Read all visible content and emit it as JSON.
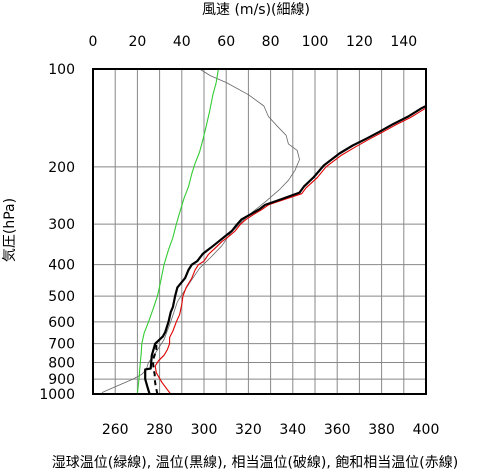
{
  "chart_data": {
    "type": "line",
    "title": "",
    "xlabel": "湿球温位(緑線), 温位(黒線), 相当温位(破線), 飽和相当温位(赤線)",
    "top_xlabel": "風速 (m/s)(細線)",
    "ylabel": "気圧(hPa)",
    "xlim": [
      250,
      400
    ],
    "top_xlim": [
      0,
      150
    ],
    "ylim": [
      1000,
      100
    ],
    "yscale": "log",
    "x_ticks": [
      "260",
      "280",
      "300",
      "320",
      "340",
      "360",
      "380",
      "400"
    ],
    "top_x_ticks": [
      "0",
      "20",
      "40",
      "60",
      "80",
      "100",
      "120",
      "140"
    ],
    "y_ticks": [
      "100",
      "200",
      "300",
      "400",
      "500",
      "600",
      "700",
      "800",
      "900",
      "1000"
    ],
    "grid": true,
    "colors": {
      "wet_bulb": "#33cc33",
      "theta": "#000000",
      "theta_e": "#000000",
      "theta_es": "#e00000",
      "wind": "#666666"
    },
    "series": [
      {
        "key": "wet_bulb",
        "axis": "bottom",
        "points": [
          [
            270,
            1000
          ],
          [
            270.3,
            950
          ],
          [
            270.7,
            900
          ],
          [
            271,
            850
          ],
          [
            271.3,
            800
          ],
          [
            271.7,
            750
          ],
          [
            272,
            700
          ],
          [
            273,
            650
          ],
          [
            275,
            600
          ],
          [
            277,
            550
          ],
          [
            279,
            500
          ],
          [
            280.5,
            450
          ],
          [
            282,
            400
          ],
          [
            284,
            360
          ],
          [
            286,
            330
          ],
          [
            287.5,
            300
          ],
          [
            289.5,
            270
          ],
          [
            291,
            250
          ],
          [
            293,
            230
          ],
          [
            294.5,
            210
          ],
          [
            296,
            195
          ],
          [
            298,
            180
          ],
          [
            299.5,
            165
          ],
          [
            301,
            150
          ],
          [
            302.5,
            135
          ],
          [
            304,
            120
          ],
          [
            305.5,
            110
          ],
          [
            306.5,
            100
          ]
        ]
      },
      {
        "key": "theta",
        "axis": "bottom",
        "style": "solid",
        "points": [
          [
            275.5,
            1000
          ],
          [
            274.5,
            950
          ],
          [
            273.5,
            900
          ],
          [
            273.5,
            840
          ],
          [
            276,
            835
          ],
          [
            276.5,
            760
          ],
          [
            278,
            700
          ],
          [
            281.5,
            665
          ],
          [
            282.5,
            645
          ],
          [
            284,
            600
          ],
          [
            285,
            560
          ],
          [
            286,
            540
          ],
          [
            287,
            500
          ],
          [
            288,
            470
          ],
          [
            291.5,
            440
          ],
          [
            293,
            415
          ],
          [
            294.5,
            400
          ],
          [
            297,
            390
          ],
          [
            299.5,
            370
          ],
          [
            303,
            355
          ],
          [
            306.5,
            340
          ],
          [
            310,
            325
          ],
          [
            312.5,
            315
          ],
          [
            315,
            300
          ],
          [
            317,
            290
          ],
          [
            321,
            280
          ],
          [
            325,
            270
          ],
          [
            327.5,
            262
          ],
          [
            333,
            254
          ],
          [
            343,
            240
          ],
          [
            345,
            230
          ],
          [
            349.5,
            215
          ],
          [
            354,
            198
          ],
          [
            361,
            182
          ],
          [
            367,
            172
          ],
          [
            373,
            164
          ],
          [
            379,
            156
          ],
          [
            385,
            148
          ],
          [
            392,
            140
          ],
          [
            398,
            132
          ],
          [
            400,
            130
          ]
        ]
      },
      {
        "key": "theta_e",
        "axis": "bottom",
        "style": "dashed",
        "points": [
          [
            279,
            1000
          ],
          [
            278.3,
            950
          ],
          [
            277.8,
            900
          ],
          [
            277.8,
            870
          ],
          [
            277.3,
            840
          ],
          [
            277,
            790
          ],
          [
            278.5,
            730
          ],
          [
            278.5,
            700
          ]
        ]
      },
      {
        "key": "theta_es",
        "axis": "bottom",
        "points": [
          [
            285,
            1000
          ],
          [
            283.5,
            970
          ],
          [
            281,
            920
          ],
          [
            278.5,
            860
          ],
          [
            278,
            820
          ],
          [
            279.5,
            790
          ],
          [
            282,
            760
          ],
          [
            283.5,
            730
          ],
          [
            284.5,
            700
          ],
          [
            284.5,
            670
          ],
          [
            286,
            640
          ],
          [
            287.5,
            600
          ],
          [
            289,
            570
          ],
          [
            290,
            530
          ],
          [
            290.5,
            500
          ],
          [
            292,
            470
          ],
          [
            294.5,
            440
          ],
          [
            296,
            415
          ],
          [
            297.5,
            400
          ],
          [
            300,
            390
          ],
          [
            302,
            372
          ],
          [
            305,
            356
          ],
          [
            308,
            340
          ],
          [
            311.5,
            326
          ],
          [
            314,
            315
          ],
          [
            316.5,
            300
          ],
          [
            319,
            290
          ],
          [
            322.5,
            280
          ],
          [
            326,
            271
          ],
          [
            329,
            262
          ],
          [
            334,
            255
          ],
          [
            344,
            242
          ],
          [
            346,
            232
          ],
          [
            351,
            216
          ],
          [
            355,
            200
          ],
          [
            362,
            184
          ],
          [
            368,
            174
          ],
          [
            374,
            165
          ],
          [
            380,
            157
          ],
          [
            386,
            149
          ],
          [
            393,
            141
          ],
          [
            399,
            133
          ],
          [
            400,
            132
          ]
        ]
      },
      {
        "key": "wind",
        "axis": "top",
        "points": [
          [
            4,
            990
          ],
          [
            10,
            950
          ],
          [
            18,
            900
          ],
          [
            22,
            870
          ],
          [
            24,
            840
          ],
          [
            25,
            800
          ],
          [
            28,
            750
          ],
          [
            32,
            680
          ],
          [
            35,
            600
          ],
          [
            38,
            520
          ],
          [
            44,
            450
          ],
          [
            48,
            410
          ],
          [
            53,
            380
          ],
          [
            58,
            350
          ],
          [
            62,
            320
          ],
          [
            67,
            295
          ],
          [
            72,
            275
          ],
          [
            78,
            255
          ],
          [
            84,
            235
          ],
          [
            88,
            220
          ],
          [
            91,
            205
          ],
          [
            93,
            190
          ],
          [
            92,
            178
          ],
          [
            88,
            170
          ],
          [
            87,
            160
          ],
          [
            83,
            150
          ],
          [
            79,
            140
          ],
          [
            77,
            130
          ],
          [
            70,
            120
          ],
          [
            60,
            110
          ],
          [
            53,
            105
          ],
          [
            48,
            100
          ]
        ]
      }
    ]
  }
}
